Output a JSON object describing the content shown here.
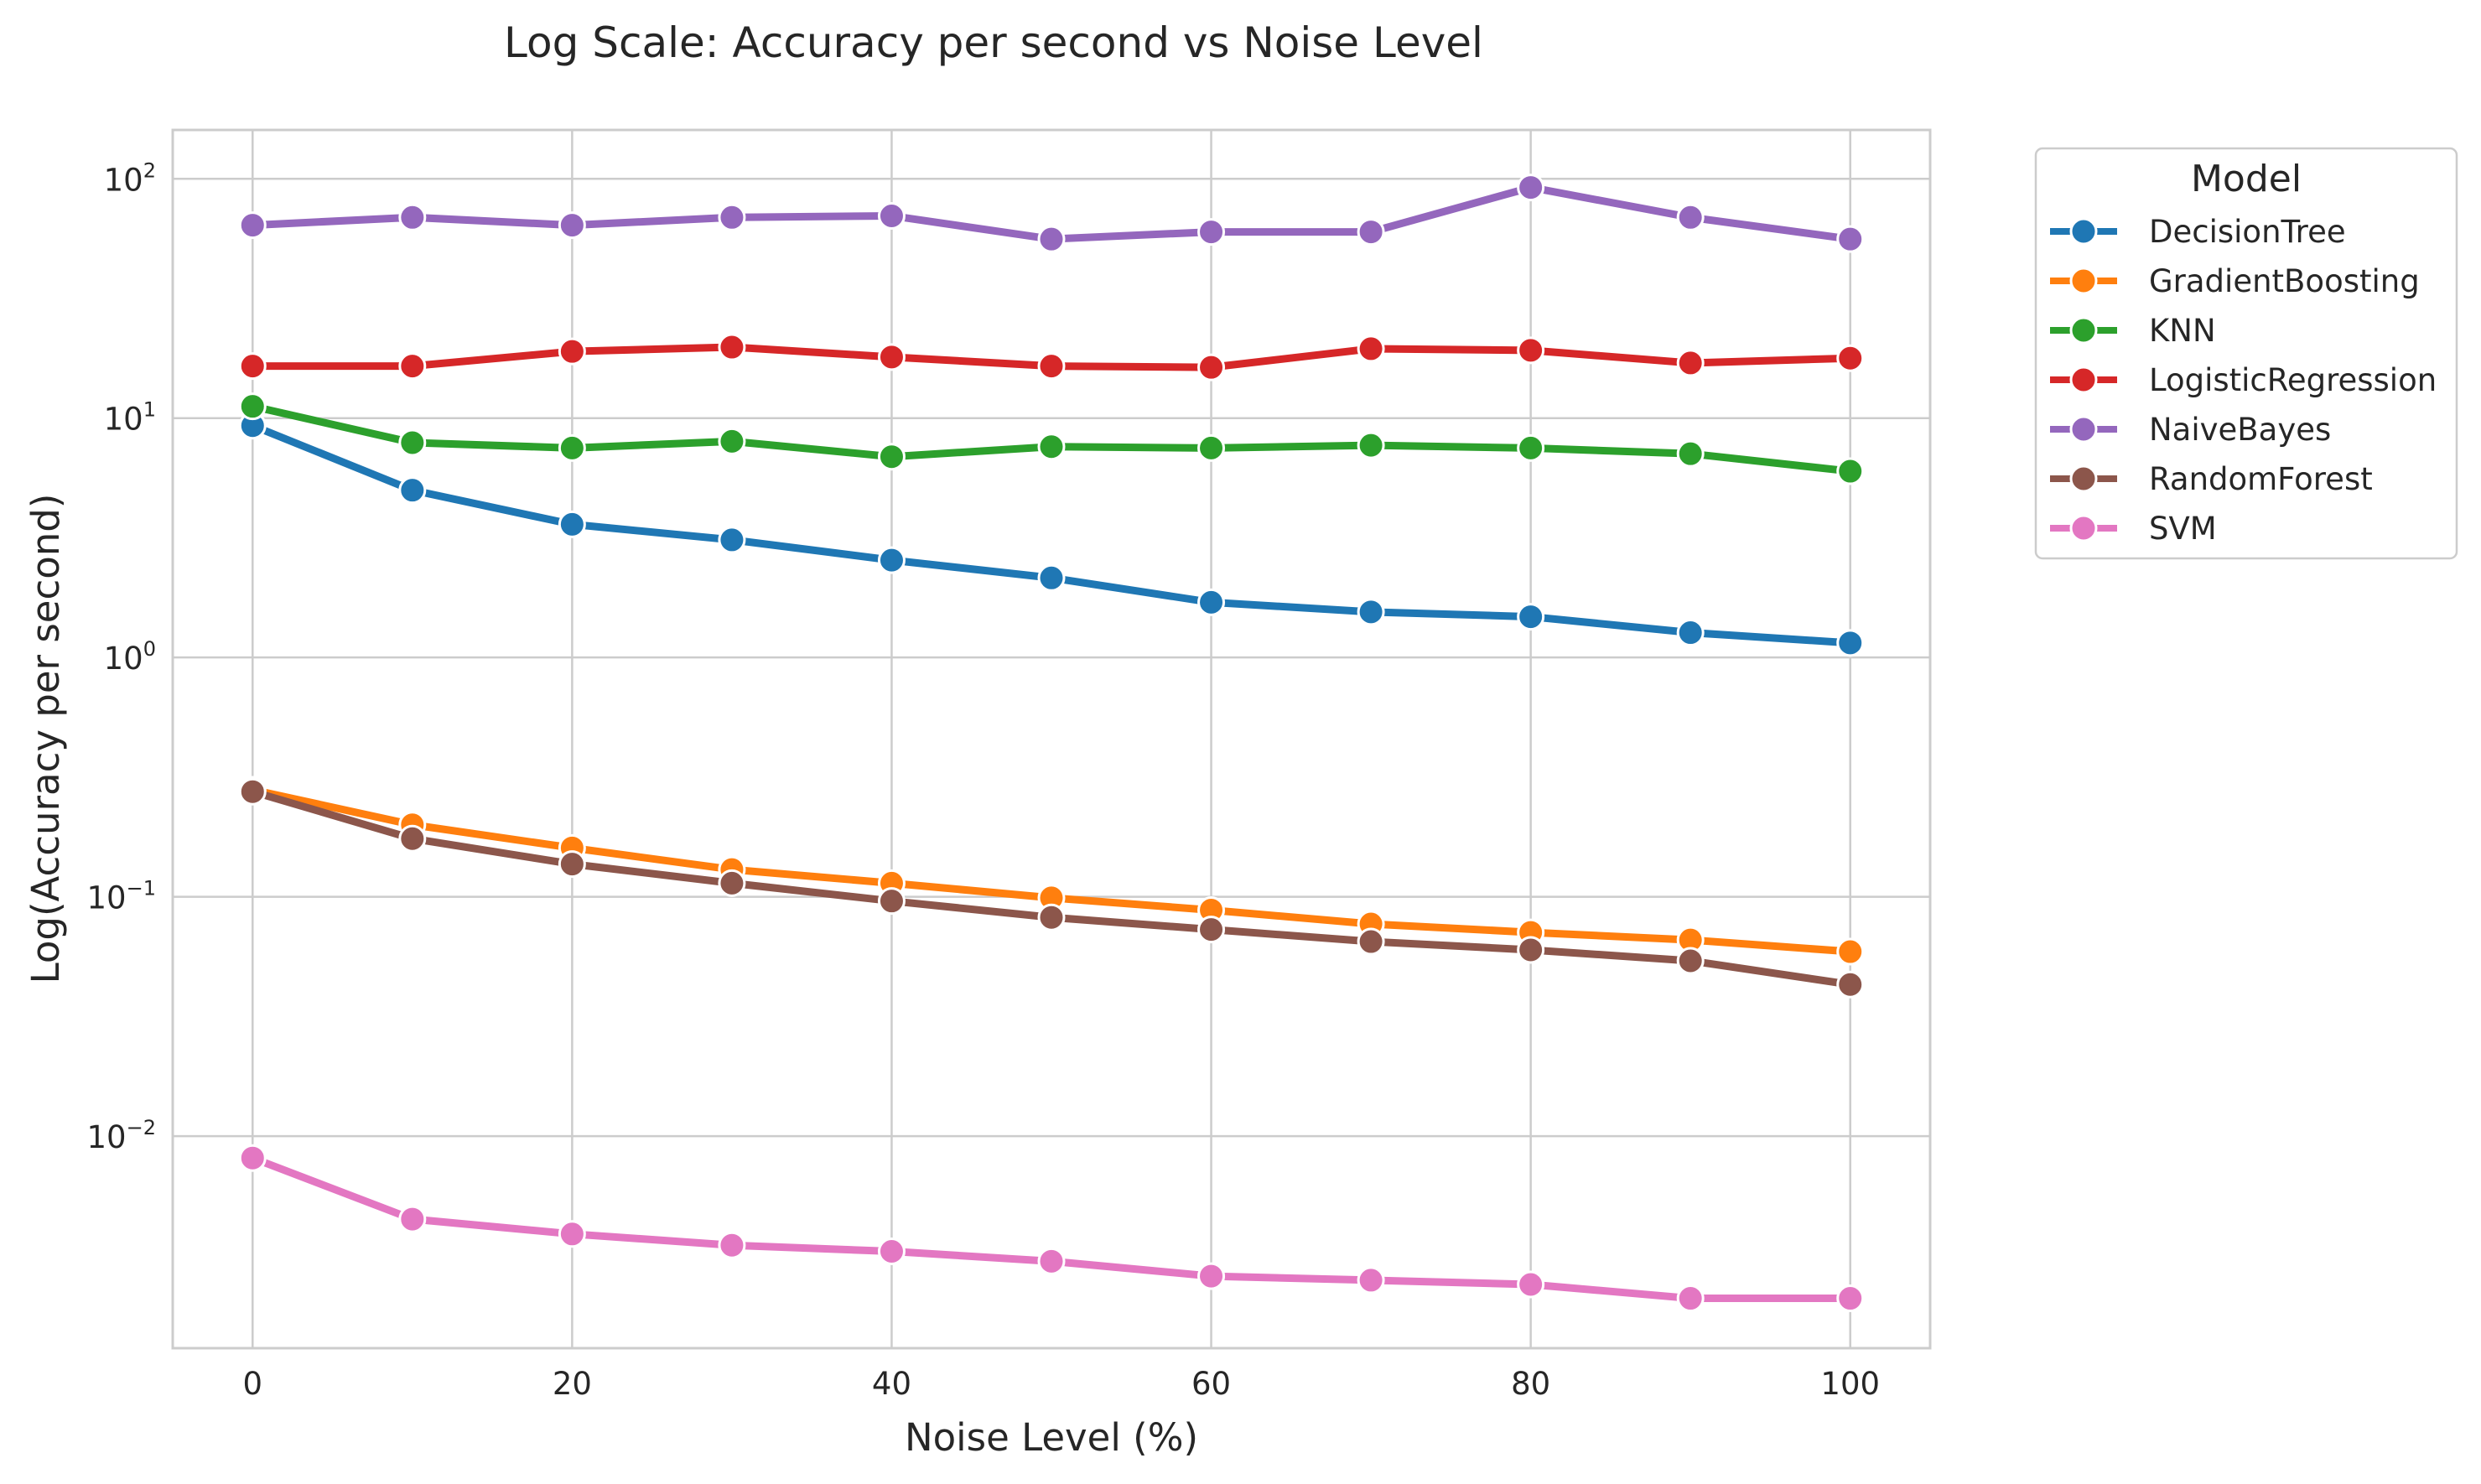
{
  "chart_data": {
    "type": "line",
    "title": "Log Scale: Accuracy per second vs Noise Level",
    "xlabel": "Noise Level (%)",
    "ylabel": "Log(Accuracy per second)",
    "yscale": "log",
    "xlim": [
      -5,
      105
    ],
    "ylim": [
      0.0013,
      160
    ],
    "grid": true,
    "x": [
      0,
      10,
      20,
      30,
      40,
      50,
      60,
      70,
      80,
      90,
      100
    ],
    "xticks": [
      {
        "value": 0,
        "label": "0"
      },
      {
        "value": 20,
        "label": "20"
      },
      {
        "value": 40,
        "label": "40"
      },
      {
        "value": 60,
        "label": "60"
      },
      {
        "value": 80,
        "label": "80"
      },
      {
        "value": 100,
        "label": "100"
      }
    ],
    "yticks": [
      {
        "value": 100,
        "base": "10",
        "exp": "2"
      },
      {
        "value": 10,
        "base": "10",
        "exp": "1"
      },
      {
        "value": 1,
        "base": "10",
        "exp": "0"
      },
      {
        "value": 0.1,
        "base": "10",
        "exp": "−1"
      },
      {
        "value": 0.01,
        "base": "10",
        "exp": "−2"
      }
    ],
    "legend": {
      "title": "Model",
      "position": "outside-top-right"
    },
    "series": [
      {
        "name": "DecisionTree",
        "color": "#1f77b4",
        "values": [
          9.3,
          5.0,
          3.6,
          3.1,
          2.55,
          2.15,
          1.7,
          1.55,
          1.48,
          1.27,
          1.15
        ]
      },
      {
        "name": "GradientBoosting",
        "color": "#ff7f0e",
        "values": [
          0.28,
          0.2,
          0.16,
          0.13,
          0.114,
          0.099,
          0.088,
          0.077,
          0.071,
          0.066,
          0.059
        ]
      },
      {
        "name": "KNN",
        "color": "#2ca02c",
        "values": [
          11.2,
          7.9,
          7.5,
          8.0,
          6.9,
          7.6,
          7.5,
          7.7,
          7.5,
          7.1,
          6.0
        ]
      },
      {
        "name": "LogisticRegression",
        "color": "#d62728",
        "values": [
          16.5,
          16.5,
          19.0,
          19.8,
          18.0,
          16.5,
          16.3,
          19.5,
          19.2,
          17.0,
          17.8
        ]
      },
      {
        "name": "NaiveBayes",
        "color": "#9467bd",
        "values": [
          64,
          69,
          64,
          69,
          70,
          56,
          60,
          60,
          92,
          69,
          56
        ]
      },
      {
        "name": "RandomForest",
        "color": "#8c564b",
        "values": [
          0.275,
          0.175,
          0.137,
          0.114,
          0.096,
          0.082,
          0.073,
          0.065,
          0.06,
          0.054,
          0.043
        ]
      },
      {
        "name": "SVM",
        "color": "#e377c2",
        "values": [
          0.0081,
          0.0045,
          0.0039,
          0.0035,
          0.0033,
          0.003,
          0.0026,
          0.0025,
          0.0024,
          0.0021,
          0.0021
        ]
      }
    ]
  }
}
